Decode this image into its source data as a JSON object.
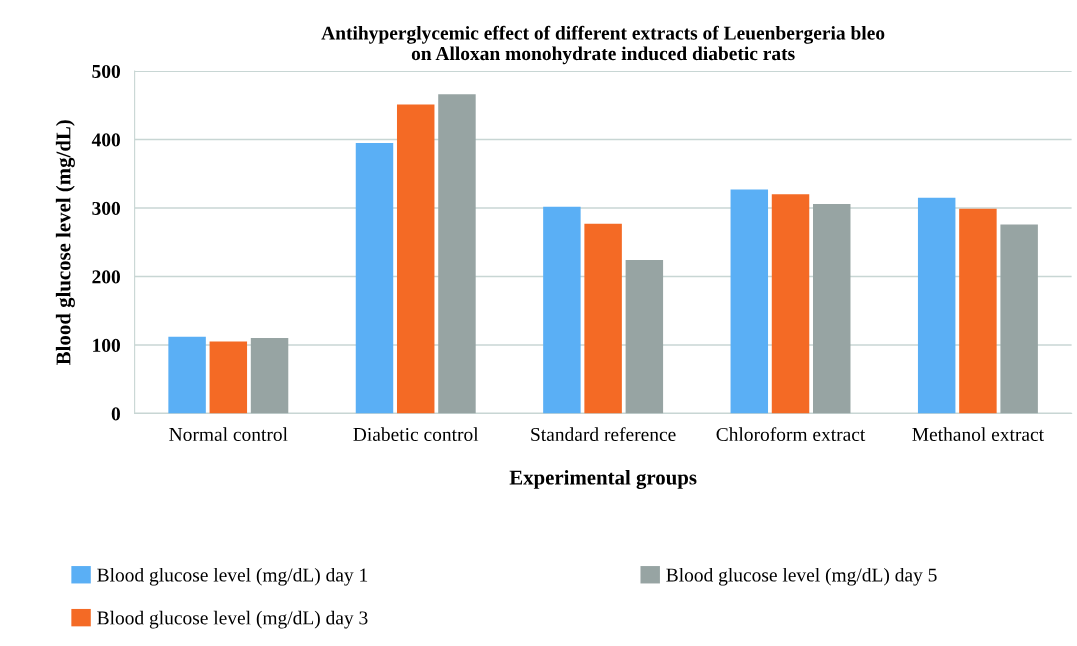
{
  "chart_data": {
    "type": "bar",
    "title": "Antihyperglycemic effect of different extracts of Leuenbergeria bleo\non Alloxan monohydrate induced diabetic rats",
    "xlabel": "Experimental groups",
    "ylabel": "Blood glucose level (mg/dL)",
    "categories": [
      "Normal control",
      "Diabetic control",
      "Standard reference",
      "Chloroform extract",
      "Methanol extract"
    ],
    "series": [
      {
        "name": "Blood glucose level (mg/dL) day 1",
        "color": "#5aaff5",
        "values": [
          112,
          395,
          302,
          327,
          315
        ]
      },
      {
        "name": "Blood glucose level (mg/dL) day 3",
        "color": "#f46a25",
        "values": [
          105,
          451,
          277,
          320,
          299
        ]
      },
      {
        "name": "Blood glucose level (mg/dL) day 5",
        "color": "#97a4a3",
        "values": [
          110,
          466,
          224,
          306,
          276
        ]
      }
    ],
    "ylim": [
      0,
      500
    ],
    "yticks": [
      0,
      100,
      200,
      300,
      400,
      500
    ],
    "grid": "y",
    "legend": "bottom"
  }
}
